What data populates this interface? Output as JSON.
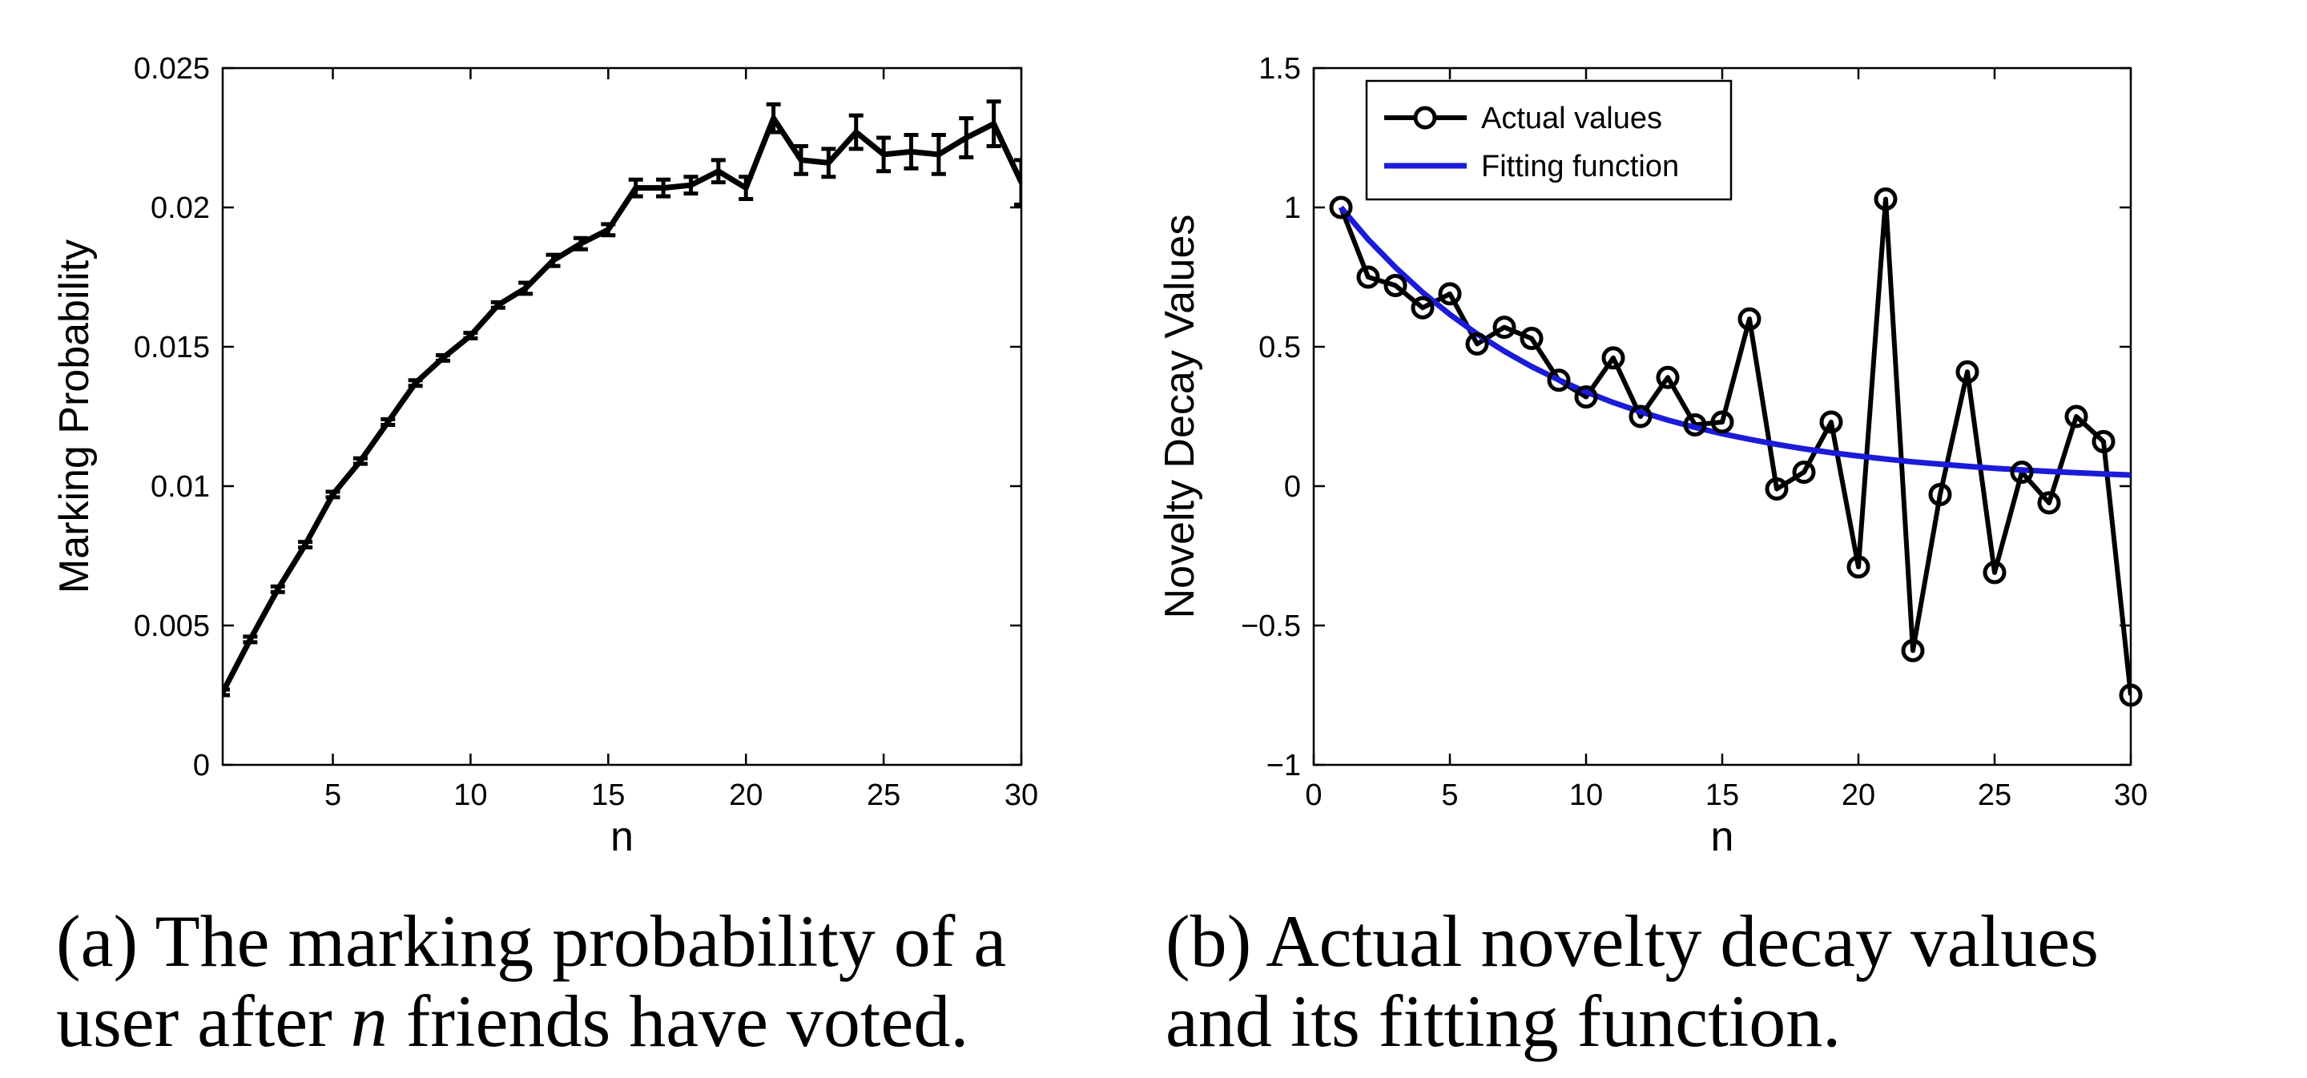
{
  "chart_data": [
    {
      "type": "line",
      "panel": "a",
      "xlabel": "n",
      "ylabel": "Marking Probability",
      "xlim": [
        1,
        30
      ],
      "ylim": [
        0,
        0.025
      ],
      "x_ticks": [
        5,
        10,
        15,
        20,
        25,
        30
      ],
      "y_ticks": [
        0,
        0.005,
        0.01,
        0.015,
        0.02,
        0.025
      ],
      "x_tick_labels": [
        "5",
        "10",
        "15",
        "20",
        "25",
        "30"
      ],
      "y_tick_labels": [
        "0",
        "0.005",
        "0.01",
        "0.015",
        "0.02",
        "0.025"
      ],
      "grid": false,
      "series": [
        {
          "x": [
            1,
            2,
            3,
            4,
            5,
            6,
            7,
            8,
            9,
            10,
            11,
            12,
            13,
            14,
            15,
            16,
            17,
            18,
            19,
            20,
            21,
            22,
            23,
            24,
            25,
            26,
            27,
            28,
            29,
            30
          ],
          "values": [
            0.0026,
            0.0045,
            0.0063,
            0.0079,
            0.0097,
            0.0109,
            0.0123,
            0.0137,
            0.0146,
            0.0154,
            0.0165,
            0.0171,
            0.0181,
            0.0187,
            0.0192,
            0.0207,
            0.0207,
            0.0208,
            0.0213,
            0.0207,
            0.0232,
            0.0217,
            0.0216,
            0.0227,
            0.0219,
            0.022,
            0.0219,
            0.0225,
            0.023,
            0.0209
          ],
          "error": [
            0.0001,
            0.0001,
            0.0001,
            0.0001,
            0.0001,
            0.0001,
            0.0001,
            0.0001,
            0.0001,
            0.0001,
            0.0001,
            0.0002,
            0.0002,
            0.0002,
            0.0002,
            0.0003,
            0.0003,
            0.0003,
            0.0004,
            0.0004,
            0.0005,
            0.0005,
            0.0005,
            0.0006,
            0.0006,
            0.0006,
            0.0007,
            0.0007,
            0.0008,
            0.0008
          ],
          "color": "#000000"
        }
      ],
      "caption_label": "(a)",
      "caption_line1": "The marking probability of a",
      "caption_line2_pre": "user after ",
      "caption_var": "n",
      "caption_line2_post": " friends have voted."
    },
    {
      "type": "line",
      "panel": "b",
      "xlabel": "n",
      "ylabel": "Novelty Decay Values",
      "xlim": [
        0,
        30
      ],
      "ylim": [
        -1,
        1.5
      ],
      "x_ticks": [
        0,
        5,
        10,
        15,
        20,
        25,
        30
      ],
      "y_ticks": [
        -1,
        -0.5,
        0,
        0.5,
        1,
        1.5
      ],
      "x_tick_labels": [
        "0",
        "5",
        "10",
        "15",
        "20",
        "25",
        "30"
      ],
      "y_tick_labels": [
        "−1",
        "−0.5",
        "0",
        "0.5",
        "1",
        "1.5"
      ],
      "grid": false,
      "legend_position": "top-left",
      "series": [
        {
          "name": "Actual values",
          "x": [
            1,
            2,
            3,
            4,
            5,
            6,
            7,
            8,
            9,
            10,
            11,
            12,
            13,
            14,
            15,
            16,
            17,
            18,
            19,
            20,
            21,
            22,
            23,
            24,
            25,
            26,
            27,
            28,
            29,
            30
          ],
          "values": [
            1.0,
            0.75,
            0.72,
            0.64,
            0.69,
            0.51,
            0.57,
            0.53,
            0.38,
            0.32,
            0.46,
            0.25,
            0.39,
            0.22,
            0.23,
            0.6,
            -0.01,
            0.05,
            0.23,
            -0.29,
            1.03,
            -0.59,
            -0.03,
            0.41,
            -0.31,
            0.05,
            -0.06,
            0.25,
            0.16,
            -0.75
          ],
          "color": "#000000",
          "marker": "circle"
        },
        {
          "name": "Fitting function",
          "x": [
            1,
            2,
            3,
            4,
            5,
            6,
            7,
            8,
            9,
            10,
            11,
            12,
            13,
            14,
            15,
            16,
            17,
            18,
            19,
            20,
            21,
            22,
            23,
            24,
            25,
            26,
            27,
            28,
            29,
            30
          ],
          "values": [
            1.0,
            0.885,
            0.785,
            0.695,
            0.616,
            0.546,
            0.484,
            0.429,
            0.381,
            0.338,
            0.3,
            0.267,
            0.237,
            0.211,
            0.188,
            0.168,
            0.15,
            0.134,
            0.12,
            0.108,
            0.097,
            0.087,
            0.079,
            0.071,
            0.064,
            0.058,
            0.053,
            0.048,
            0.044,
            0.04
          ],
          "color": "#1b1bd9"
        }
      ],
      "caption_label": "(b)",
      "caption_line1": "Actual novelty decay values",
      "caption_line2": "and its fitting function."
    }
  ]
}
